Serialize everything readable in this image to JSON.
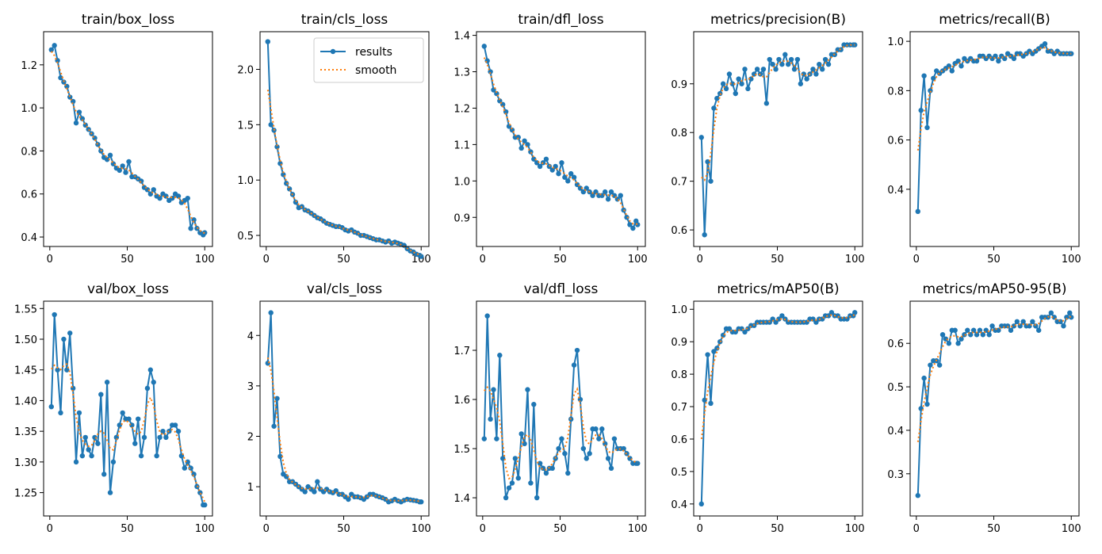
{
  "legend": {
    "results": "results",
    "smooth": "smooth"
  },
  "colors": {
    "results": "#1f77b4",
    "smooth": "#ff7f0e"
  },
  "chart_data": [
    {
      "type": "line",
      "title": "train/box_loss",
      "ylim": [
        0.356,
        1.354
      ],
      "xlim": [
        -4,
        105
      ],
      "xticks": [
        "0",
        "50",
        "100"
      ],
      "yticks": [
        "0.4",
        "0.6",
        "0.8",
        "1.0",
        "1.2"
      ],
      "values": [
        1.27,
        1.29,
        1.22,
        1.14,
        1.12,
        1.1,
        1.05,
        1.03,
        0.93,
        0.98,
        0.95,
        0.92,
        0.9,
        0.88,
        0.86,
        0.83,
        0.8,
        0.77,
        0.76,
        0.78,
        0.74,
        0.72,
        0.71,
        0.73,
        0.7,
        0.75,
        0.68,
        0.68,
        0.67,
        0.66,
        0.63,
        0.62,
        0.6,
        0.62,
        0.59,
        0.58,
        0.6,
        0.59,
        0.57,
        0.58,
        0.6,
        0.59,
        0.56,
        0.57,
        0.58,
        0.44,
        0.48,
        0.44,
        0.42,
        0.41,
        0.42
      ]
    },
    {
      "type": "line",
      "title": "train/cls_loss",
      "ylim": [
        0.4,
        2.34
      ],
      "xlim": [
        -4,
        105
      ],
      "xticks": [
        "0",
        "50",
        "100"
      ],
      "yticks": [
        "0.5",
        "1.0",
        "1.5",
        "2.0"
      ],
      "legend": "top-right",
      "values": [
        2.25,
        1.5,
        1.45,
        1.3,
        1.15,
        1.05,
        0.97,
        0.92,
        0.87,
        0.8,
        0.75,
        0.76,
        0.73,
        0.72,
        0.7,
        0.68,
        0.66,
        0.65,
        0.63,
        0.61,
        0.6,
        0.59,
        0.58,
        0.58,
        0.57,
        0.55,
        0.54,
        0.55,
        0.53,
        0.52,
        0.5,
        0.5,
        0.49,
        0.48,
        0.47,
        0.46,
        0.46,
        0.45,
        0.44,
        0.45,
        0.43,
        0.44,
        0.43,
        0.42,
        0.41,
        0.38,
        0.36,
        0.35,
        0.33,
        0.32,
        0.31
      ]
    },
    {
      "type": "line",
      "title": "train/dfl_loss",
      "ylim": [
        0.82,
        1.41
      ],
      "xlim": [
        -4,
        105
      ],
      "xticks": [
        "0",
        "50",
        "100"
      ],
      "yticks": [
        "0.9",
        "1.0",
        "1.1",
        "1.2",
        "1.3",
        "1.4"
      ],
      "values": [
        1.37,
        1.33,
        1.3,
        1.25,
        1.24,
        1.22,
        1.21,
        1.19,
        1.15,
        1.14,
        1.12,
        1.12,
        1.09,
        1.11,
        1.1,
        1.08,
        1.06,
        1.05,
        1.04,
        1.05,
        1.06,
        1.04,
        1.03,
        1.04,
        1.02,
        1.05,
        1.01,
        1.0,
        1.02,
        1.01,
        0.99,
        0.98,
        0.97,
        0.98,
        0.97,
        0.96,
        0.97,
        0.96,
        0.96,
        0.97,
        0.95,
        0.97,
        0.96,
        0.95,
        0.96,
        0.92,
        0.9,
        0.88,
        0.87,
        0.89,
        0.88
      ]
    },
    {
      "type": "line",
      "title": "metrics/precision(B)",
      "ylim": [
        0.566,
        1.007
      ],
      "xlim": [
        -4,
        105
      ],
      "xticks": [
        "0",
        "50",
        "100"
      ],
      "yticks": [
        "0.6",
        "0.7",
        "0.8",
        "0.9"
      ],
      "values": [
        0.79,
        0.59,
        0.74,
        0.7,
        0.85,
        0.87,
        0.88,
        0.9,
        0.89,
        0.92,
        0.9,
        0.88,
        0.91,
        0.9,
        0.93,
        0.89,
        0.91,
        0.92,
        0.93,
        0.92,
        0.93,
        0.86,
        0.95,
        0.94,
        0.93,
        0.95,
        0.94,
        0.96,
        0.94,
        0.95,
        0.93,
        0.95,
        0.9,
        0.92,
        0.91,
        0.92,
        0.93,
        0.92,
        0.94,
        0.93,
        0.95,
        0.94,
        0.96,
        0.96,
        0.97,
        0.97,
        0.98,
        0.98,
        0.98,
        0.98,
        0.98
      ]
    },
    {
      "type": "line",
      "title": "metrics/recall(B)",
      "ylim": [
        0.168,
        1.039
      ],
      "xlim": [
        -4,
        105
      ],
      "xticks": [
        "0",
        "50",
        "100"
      ],
      "yticks": [
        "0.4",
        "0.6",
        "0.8",
        "1.0"
      ],
      "values": [
        0.31,
        0.72,
        0.86,
        0.65,
        0.8,
        0.85,
        0.88,
        0.87,
        0.88,
        0.89,
        0.9,
        0.88,
        0.91,
        0.92,
        0.9,
        0.93,
        0.92,
        0.93,
        0.92,
        0.92,
        0.94,
        0.94,
        0.93,
        0.94,
        0.93,
        0.94,
        0.92,
        0.94,
        0.93,
        0.95,
        0.94,
        0.93,
        0.95,
        0.95,
        0.94,
        0.95,
        0.96,
        0.95,
        0.96,
        0.97,
        0.98,
        0.99,
        0.96,
        0.96,
        0.95,
        0.96,
        0.95,
        0.95,
        0.95,
        0.95,
        0.95
      ]
    },
    {
      "type": "line",
      "title": "val/box_loss",
      "ylim": [
        1.212,
        1.562
      ],
      "xlim": [
        -4,
        105
      ],
      "xticks": [
        "0",
        "50",
        "100"
      ],
      "yticks": [
        "1.25",
        "1.30",
        "1.35",
        "1.40",
        "1.45",
        "1.50",
        "1.55"
      ],
      "values": [
        1.39,
        1.54,
        1.45,
        1.38,
        1.5,
        1.45,
        1.51,
        1.42,
        1.3,
        1.38,
        1.31,
        1.34,
        1.32,
        1.31,
        1.34,
        1.33,
        1.41,
        1.28,
        1.43,
        1.25,
        1.3,
        1.34,
        1.36,
        1.38,
        1.37,
        1.37,
        1.36,
        1.33,
        1.37,
        1.31,
        1.34,
        1.42,
        1.45,
        1.43,
        1.31,
        1.34,
        1.35,
        1.34,
        1.35,
        1.36,
        1.36,
        1.35,
        1.31,
        1.29,
        1.3,
        1.29,
        1.28,
        1.26,
        1.25,
        1.23,
        1.23
      ]
    },
    {
      "type": "line",
      "title": "val/cls_loss",
      "ylim": [
        0.42,
        4.68
      ],
      "xlim": [
        -4,
        105
      ],
      "xticks": [
        "0",
        "50",
        "100"
      ],
      "yticks": [
        "1",
        "2",
        "3",
        "4"
      ],
      "values": [
        3.45,
        4.45,
        2.2,
        2.75,
        1.6,
        1.25,
        1.2,
        1.1,
        1.1,
        1.05,
        1.0,
        0.95,
        0.9,
        1.0,
        0.95,
        0.9,
        1.1,
        0.95,
        0.9,
        0.95,
        0.9,
        0.88,
        0.92,
        0.85,
        0.85,
        0.8,
        0.75,
        0.85,
        0.8,
        0.8,
        0.78,
        0.75,
        0.8,
        0.85,
        0.85,
        0.82,
        0.8,
        0.78,
        0.75,
        0.7,
        0.72,
        0.75,
        0.72,
        0.7,
        0.73,
        0.75,
        0.74,
        0.73,
        0.72,
        0.7,
        0.7
      ]
    },
    {
      "type": "line",
      "title": "val/dfl_loss",
      "ylim": [
        1.363,
        1.8
      ],
      "xlim": [
        -4,
        105
      ],
      "xticks": [
        "0",
        "50",
        "100"
      ],
      "yticks": [
        "1.4",
        "1.5",
        "1.6",
        "1.7"
      ],
      "values": [
        1.52,
        1.77,
        1.56,
        1.62,
        1.52,
        1.69,
        1.48,
        1.4,
        1.42,
        1.43,
        1.48,
        1.44,
        1.53,
        1.51,
        1.62,
        1.43,
        1.59,
        1.4,
        1.47,
        1.46,
        1.45,
        1.46,
        1.46,
        1.48,
        1.5,
        1.52,
        1.49,
        1.45,
        1.56,
        1.67,
        1.7,
        1.6,
        1.5,
        1.48,
        1.49,
        1.54,
        1.54,
        1.52,
        1.54,
        1.51,
        1.48,
        1.46,
        1.52,
        1.5,
        1.5,
        1.5,
        1.49,
        1.48,
        1.47,
        1.47,
        1.47
      ]
    },
    {
      "type": "line",
      "title": "metrics/mAP50(B)",
      "ylim": [
        0.363,
        1.025
      ],
      "xlim": [
        -4,
        105
      ],
      "xticks": [
        "0",
        "50",
        "100"
      ],
      "yticks": [
        "0.4",
        "0.5",
        "0.6",
        "0.7",
        "0.8",
        "0.9",
        "1.0"
      ],
      "values": [
        0.4,
        0.72,
        0.86,
        0.71,
        0.87,
        0.88,
        0.9,
        0.92,
        0.94,
        0.94,
        0.93,
        0.93,
        0.94,
        0.94,
        0.93,
        0.94,
        0.95,
        0.95,
        0.96,
        0.96,
        0.96,
        0.96,
        0.96,
        0.97,
        0.96,
        0.97,
        0.98,
        0.97,
        0.96,
        0.96,
        0.96,
        0.96,
        0.96,
        0.96,
        0.96,
        0.97,
        0.97,
        0.96,
        0.97,
        0.97,
        0.98,
        0.98,
        0.99,
        0.98,
        0.98,
        0.97,
        0.97,
        0.97,
        0.98,
        0.98,
        0.99
      ]
    },
    {
      "type": "line",
      "title": "metrics/mAP50-95(B)",
      "ylim": [
        0.203,
        0.697
      ],
      "xlim": [
        -4,
        105
      ],
      "xticks": [
        "0",
        "50",
        "100"
      ],
      "yticks": [
        "0.3",
        "0.4",
        "0.5",
        "0.6"
      ],
      "values": [
        0.25,
        0.45,
        0.52,
        0.46,
        0.55,
        0.56,
        0.56,
        0.55,
        0.62,
        0.61,
        0.6,
        0.63,
        0.63,
        0.6,
        0.61,
        0.62,
        0.63,
        0.62,
        0.63,
        0.62,
        0.63,
        0.62,
        0.63,
        0.62,
        0.64,
        0.63,
        0.63,
        0.64,
        0.64,
        0.64,
        0.63,
        0.64,
        0.65,
        0.64,
        0.65,
        0.64,
        0.64,
        0.65,
        0.64,
        0.63,
        0.66,
        0.66,
        0.66,
        0.67,
        0.66,
        0.65,
        0.65,
        0.64,
        0.66,
        0.67,
        0.66
      ]
    }
  ],
  "epochs": [
    1,
    3,
    5,
    7,
    9,
    11,
    13,
    15,
    17,
    19,
    21,
    23,
    25,
    27,
    29,
    31,
    33,
    35,
    37,
    39,
    41,
    43,
    45,
    47,
    49,
    51,
    53,
    55,
    57,
    59,
    61,
    63,
    65,
    67,
    69,
    71,
    73,
    75,
    77,
    79,
    81,
    83,
    85,
    87,
    89,
    91,
    93,
    95,
    97,
    99,
    100
  ]
}
